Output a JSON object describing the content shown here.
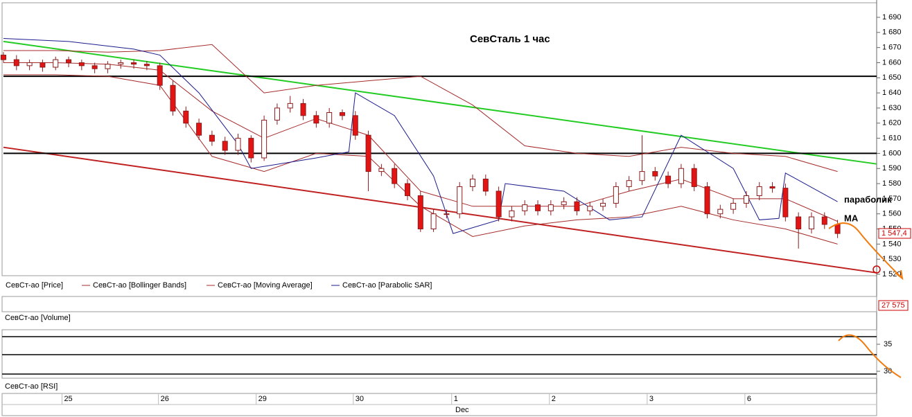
{
  "chart_data": {
    "type": "candlestick",
    "title": "СевСталь   1 час",
    "annotations": [
      "параболик",
      "МА"
    ],
    "last_price_label": "1 547,4",
    "volume_label": "27 575",
    "legend": [
      "СевСт-ао [Price]",
      "СевСт-ао [Bollinger Bands]",
      "СевСт-ао [Moving Average]",
      "СевСт-ао [Parabolic SAR]"
    ],
    "volume_title": "СевСт-ао [Volume]",
    "rsi_title": "СевСт-ао [RSI]",
    "rsi_yticks": [
      35,
      30
    ],
    "month_label": "Dec",
    "xlim": [
      0,
      134
    ],
    "xticks": [
      {
        "value": 9.3,
        "label": "25"
      },
      {
        "value": 24.1,
        "label": "26"
      },
      {
        "value": 39.1,
        "label": "29"
      },
      {
        "value": 54,
        "label": "30"
      },
      {
        "value": 69.1,
        "label": "1"
      },
      {
        "value": 84.1,
        "label": "2"
      },
      {
        "value": 99.1,
        "label": "3"
      },
      {
        "value": 114.1,
        "label": "6"
      }
    ],
    "ylim": [
      1520,
      1690
    ],
    "yticks": [
      {
        "value": 1690,
        "label": "1 690"
      },
      {
        "value": 1680,
        "label": "1 680"
      },
      {
        "value": 1670,
        "label": "1 670"
      },
      {
        "value": 1660,
        "label": "1 660"
      },
      {
        "value": 1650,
        "label": "1 650"
      },
      {
        "value": 1640,
        "label": "1 640"
      },
      {
        "value": 1630,
        "label": "1 630"
      },
      {
        "value": 1620,
        "label": "1 620"
      },
      {
        "value": 1610,
        "label": "1 610"
      },
      {
        "value": 1600,
        "label": "1 600"
      },
      {
        "value": 1590,
        "label": "1 590"
      },
      {
        "value": 1580,
        "label": "1 580"
      },
      {
        "value": 1570,
        "label": "1 570"
      },
      {
        "value": 1560,
        "label": "1 560"
      },
      {
        "value": 1550,
        "label": "1 550"
      },
      {
        "value": 1540,
        "label": "1 540"
      },
      {
        "value": 1530,
        "label": "1 530"
      },
      {
        "value": 1520,
        "label": "1 520"
      }
    ],
    "x": [
      0,
      2,
      4,
      6,
      8,
      10,
      12,
      14,
      16,
      18,
      20,
      22,
      24,
      26,
      28,
      30,
      32,
      34,
      36,
      38,
      40,
      42,
      44,
      46,
      48,
      50,
      52,
      54,
      56,
      58,
      60,
      62,
      64,
      66,
      68,
      70,
      72,
      74,
      76,
      78,
      80,
      82,
      84,
      86,
      88,
      90,
      92,
      94,
      96,
      98,
      100,
      102,
      104,
      106,
      108,
      110,
      112,
      114,
      116,
      118,
      120,
      122,
      124,
      126,
      128
    ],
    "close": [
      1662,
      1658,
      1660,
      1657,
      1662,
      1660,
      1658,
      1656,
      1659,
      1660,
      1659,
      1658,
      1645,
      1628,
      1620,
      1612,
      1608,
      1602,
      1610,
      1597,
      1622,
      1630,
      1633,
      1625,
      1620,
      1627,
      1625,
      1612,
      1588,
      1590,
      1580,
      1572,
      1550,
      1560,
      1560,
      1578,
      1583,
      1575,
      1558,
      1562,
      1566,
      1562,
      1566,
      1568,
      1562,
      1565,
      1567,
      1578,
      1582,
      1588,
      1585,
      1580,
      1590,
      1578,
      1560,
      1563,
      1567,
      1572,
      1578,
      1577,
      1558,
      1550,
      1558,
      1553,
      1547
    ],
    "open": [
      1665,
      1662,
      1658,
      1660,
      1657,
      1662,
      1660,
      1658,
      1656,
      1659,
      1660,
      1659,
      1658,
      1645,
      1628,
      1620,
      1612,
      1608,
      1602,
      1610,
      1597,
      1622,
      1630,
      1633,
      1625,
      1620,
      1627,
      1625,
      1612,
      1588,
      1590,
      1580,
      1572,
      1550,
      1560,
      1560,
      1578,
      1583,
      1575,
      1558,
      1562,
      1566,
      1562,
      1566,
      1568,
      1562,
      1565,
      1567,
      1578,
      1582,
      1588,
      1585,
      1580,
      1590,
      1578,
      1560,
      1563,
      1567,
      1572,
      1578,
      1577,
      1558,
      1550,
      1558,
      1553
    ],
    "high": [
      1667,
      1665,
      1662,
      1662,
      1664,
      1664,
      1662,
      1660,
      1661,
      1662,
      1662,
      1661,
      1660,
      1648,
      1631,
      1623,
      1615,
      1611,
      1613,
      1612,
      1625,
      1633,
      1638,
      1636,
      1628,
      1630,
      1629,
      1628,
      1615,
      1593,
      1593,
      1583,
      1575,
      1563,
      1563,
      1581,
      1586,
      1586,
      1578,
      1565,
      1569,
      1569,
      1569,
      1571,
      1571,
      1568,
      1570,
      1581,
      1585,
      1612,
      1591,
      1588,
      1593,
      1593,
      1581,
      1566,
      1570,
      1575,
      1581,
      1581,
      1580,
      1561,
      1561,
      1561,
      1556
    ],
    "low": [
      1660,
      1655,
      1655,
      1654,
      1655,
      1657,
      1655,
      1653,
      1653,
      1656,
      1656,
      1655,
      1642,
      1625,
      1617,
      1609,
      1605,
      1599,
      1599,
      1594,
      1595,
      1619,
      1627,
      1622,
      1617,
      1617,
      1622,
      1609,
      1575,
      1585,
      1577,
      1569,
      1548,
      1548,
      1557,
      1557,
      1575,
      1572,
      1555,
      1555,
      1559,
      1559,
      1559,
      1563,
      1559,
      1559,
      1562,
      1564,
      1575,
      1579,
      1582,
      1577,
      1577,
      1575,
      1557,
      1557,
      1560,
      1564,
      1569,
      1574,
      1555,
      1537,
      1547,
      1550,
      1544
    ],
    "up_color": "#ffffff",
    "down_color": "#e31414",
    "wick_color": "#8b1a1a",
    "series": [
      {
        "name": "СевСт-ао [Bollinger Bands]",
        "color": "#a52a2a",
        "x": [
          0,
          8,
          16,
          24,
          32,
          40,
          48,
          56,
          64,
          72,
          80,
          88,
          96,
          104,
          112,
          120,
          128
        ],
        "values": [
          1668,
          1668,
          1667,
          1668,
          1672,
          1640,
          1645,
          1648,
          1651,
          1632,
          1605,
          1600,
          1598,
          1604,
          1600,
          1598,
          1588
        ]
      },
      {
        "name": "СевСт-ао [Bollinger Bands]",
        "color": "#a52a2a",
        "x": [
          0,
          8,
          16,
          24,
          32,
          40,
          48,
          56,
          64,
          72,
          80,
          88,
          96,
          104,
          112,
          120,
          128
        ],
        "values": [
          1652,
          1652,
          1651,
          1645,
          1598,
          1588,
          1600,
          1598,
          1565,
          1545,
          1552,
          1556,
          1558,
          1565,
          1556,
          1550,
          1540
        ]
      },
      {
        "name": "СевСт-ао [Moving Average]",
        "color": "#a52a2a",
        "x": [
          0,
          8,
          16,
          24,
          32,
          40,
          48,
          56,
          64,
          72,
          80,
          88,
          96,
          104,
          112,
          120,
          128
        ],
        "values": [
          1660,
          1660,
          1659,
          1655,
          1628,
          1610,
          1623,
          1612,
          1575,
          1565,
          1565,
          1565,
          1575,
          1583,
          1570,
          1570,
          1555
        ]
      },
      {
        "name": "СевСт-ао [Parabolic SAR]",
        "color": "#1a1a8c",
        "x": [
          0,
          10,
          20,
          24,
          30,
          36,
          38,
          48,
          53,
          54,
          60,
          66,
          69,
          76,
          77,
          86,
          93,
          98,
          104,
          112,
          116,
          119,
          120,
          128
        ],
        "values": [
          1676,
          1674,
          1669,
          1665,
          1640,
          1606,
          1590,
          1597,
          1601,
          1640,
          1625,
          1585,
          1547,
          1556,
          1580,
          1575,
          1556,
          1558,
          1612,
          1590,
          1556,
          1557,
          1587,
          1568
        ]
      }
    ],
    "lines": [
      {
        "color": "#22cc22",
        "x": [
          0,
          134
        ],
        "values": [
          1674,
          1593
        ]
      },
      {
        "color": "#c02020",
        "x": [
          0,
          134
        ],
        "values": [
          1604,
          1521
        ]
      },
      {
        "color": "#000000",
        "x": [
          0,
          134
        ],
        "values": [
          1651,
          1651
        ]
      },
      {
        "color": "#000000",
        "x": [
          0,
          134
        ],
        "values": [
          1600,
          1600
        ]
      }
    ]
  }
}
